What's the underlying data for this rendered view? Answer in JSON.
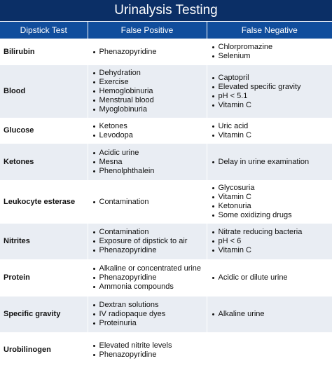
{
  "title": "Urinalysis Testing",
  "headers": [
    "Dipstick Test",
    "False Positive",
    "False Negative"
  ],
  "rows": [
    {
      "test": "Bilirubin",
      "false_positive": [
        "Phenazopyridine"
      ],
      "false_negative": [
        "Chlorpromazine",
        "Selenium"
      ]
    },
    {
      "test": "Blood",
      "false_positive": [
        "Dehydration",
        "Exercise",
        "Hemoglobinuria",
        "Menstrual blood",
        "Myoglobinuria"
      ],
      "false_negative": [
        "Captopril",
        "Elevated specific gravity",
        "pH < 5.1",
        "Vitamin C"
      ]
    },
    {
      "test": "Glucose",
      "false_positive": [
        "Ketones",
        "Levodopa"
      ],
      "false_negative": [
        "Uric acid",
        "Vitamin C"
      ]
    },
    {
      "test": "Ketones",
      "false_positive": [
        "Acidic urine",
        "Mesna",
        "Phenolphthalein"
      ],
      "false_negative": [
        "Delay in urine examination"
      ]
    },
    {
      "test": "Leukocyte esterase",
      "false_positive": [
        "Contamination"
      ],
      "false_negative": [
        "Glycosuria",
        "Vitamin C",
        "Ketonuria",
        "Some oxidizing drugs"
      ]
    },
    {
      "test": "Nitrites",
      "false_positive": [
        "Contamination",
        "Exposure of dipstick to air",
        "Phenazopyridine"
      ],
      "false_negative": [
        "Nitrate reducing bacteria",
        "pH < 6",
        "Vitamin C"
      ]
    },
    {
      "test": "Protein",
      "false_positive": [
        "Alkaline or concentrated urine",
        "Phenazopyridine",
        "Ammonia compounds"
      ],
      "false_negative": [
        "Acidic or dilute urine"
      ]
    },
    {
      "test": "Specific gravity",
      "false_positive": [
        "Dextran solutions",
        "IV radiopaque dyes",
        "Proteinuria"
      ],
      "false_negative": [
        "Alkaline urine"
      ]
    },
    {
      "test": "Urobilinogen",
      "false_positive": [
        "Elevated nitrite levels",
        "Phenazopyridine"
      ],
      "false_negative": []
    }
  ]
}
